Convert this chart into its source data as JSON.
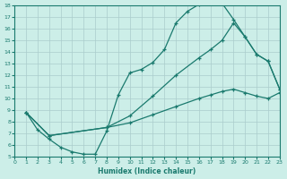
{
  "xlabel": "Humidex (Indice chaleur)",
  "bg_color": "#cceee8",
  "grid_color": "#aacccc",
  "line_color": "#1a7a6e",
  "xlim": [
    0,
    23
  ],
  "ylim": [
    5,
    18
  ],
  "yticks": [
    5,
    6,
    7,
    8,
    9,
    10,
    11,
    12,
    13,
    14,
    15,
    16,
    17,
    18
  ],
  "xticks": [
    0,
    1,
    2,
    3,
    4,
    5,
    6,
    7,
    8,
    9,
    10,
    11,
    12,
    13,
    14,
    15,
    16,
    17,
    18,
    19,
    20,
    21,
    22,
    23
  ],
  "curve_upper": {
    "x": [
      1,
      2,
      3,
      4,
      5,
      6,
      7,
      8,
      9,
      10,
      11,
      12,
      13,
      14,
      15,
      16,
      17,
      18,
      19,
      20,
      21,
      22,
      23
    ],
    "y": [
      8.8,
      7.3,
      6.5,
      5.8,
      5.4,
      5.2,
      5.2,
      7.2,
      10.3,
      12.2,
      12.5,
      13.1,
      14.2,
      16.5,
      17.5,
      18.1,
      18.2,
      18.2,
      16.8,
      15.3,
      13.8,
      13.2,
      10.8
    ]
  },
  "curve_mid": {
    "x": [
      1,
      3,
      8,
      10,
      12,
      14,
      16,
      17,
      18,
      19,
      20,
      21,
      22,
      23
    ],
    "y": [
      8.8,
      6.8,
      7.5,
      8.5,
      10.2,
      12.0,
      13.5,
      14.2,
      15.0,
      16.5,
      15.3,
      13.8,
      13.2,
      10.8
    ]
  },
  "curve_lower": {
    "x": [
      1,
      3,
      8,
      10,
      12,
      14,
      16,
      17,
      18,
      19,
      20,
      21,
      22,
      23
    ],
    "y": [
      8.8,
      6.8,
      7.5,
      7.9,
      8.6,
      9.3,
      10.0,
      10.3,
      10.6,
      10.8,
      10.5,
      10.2,
      10.0,
      10.5
    ]
  }
}
